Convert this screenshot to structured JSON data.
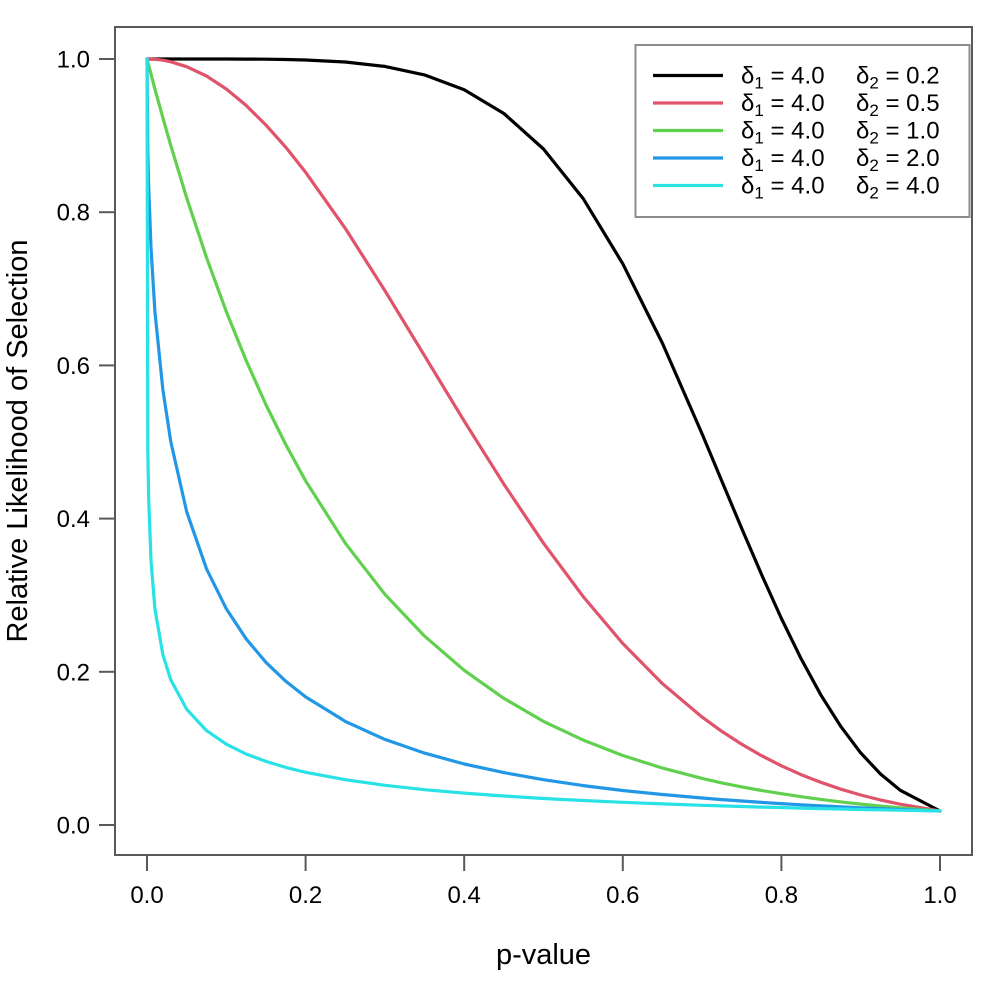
{
  "figure": {
    "background": "#ffffff",
    "axis_color": "#595959",
    "legend_border_color": "#8c8c8c",
    "text_color": "#000000"
  },
  "chart_data": {
    "type": "line",
    "title": "",
    "xlabel": "p-value",
    "ylabel": "Relative Likelihood of Selection",
    "xlim": [
      0,
      1
    ],
    "ylim": [
      0,
      1
    ],
    "grid": false,
    "legend_position": "top-right",
    "xtick_values": [
      0.0,
      0.2,
      0.4,
      0.6,
      0.8,
      1.0
    ],
    "xtick_labels": [
      "0.0",
      "0.2",
      "0.4",
      "0.6",
      "0.8",
      "1.0"
    ],
    "ytick_values": [
      0.0,
      0.2,
      0.4,
      0.6,
      0.8,
      1.0
    ],
    "ytick_labels": [
      "0.0",
      "0.2",
      "0.4",
      "0.6",
      "0.8",
      "1.0"
    ],
    "x": [
      0,
      0.001,
      0.002,
      0.005,
      0.01,
      0.02,
      0.03,
      0.05,
      0.075,
      0.1,
      0.125,
      0.15,
      0.175,
      0.2,
      0.25,
      0.3,
      0.35,
      0.4,
      0.45,
      0.5,
      0.55,
      0.6,
      0.65,
      0.7,
      0.725,
      0.75,
      0.775,
      0.8,
      0.825,
      0.85,
      0.875,
      0.9,
      0.925,
      0.95,
      1.0
    ],
    "series": [
      {
        "name": "δ1 = 4.0  δ2 = 0.2",
        "color": "#000000",
        "legend": {
          "sym1": "δ",
          "sub1": "1",
          "val1": " = 4.0",
          "sym2": "δ",
          "sub2": "2",
          "val2": " = 0.2"
        },
        "values": [
          1.0,
          1.0,
          1.0,
          1.0,
          1.0,
          1.0,
          1.0,
          1.0,
          1.0,
          1.0,
          0.9999,
          0.9997,
          0.9993,
          0.9987,
          0.9961,
          0.9903,
          0.9792,
          0.9599,
          0.9289,
          0.8825,
          0.8177,
          0.7327,
          0.6287,
          0.5106,
          0.4487,
          0.387,
          0.3269,
          0.2696,
          0.2168,
          0.1695,
          0.1285,
          0.0941,
          0.0666,
          0.0453,
          0.0183
        ]
      },
      {
        "name": "δ1 = 4.0  δ2 = 0.5",
        "color": "#DF536B",
        "legend": {
          "sym1": "δ",
          "sub1": "1",
          "val1": " = 4.0",
          "sym2": "δ",
          "sub2": "2",
          "val2": " = 0.5"
        },
        "values": [
          1.0,
          1.0,
          1.0,
          0.9999,
          0.9996,
          0.9984,
          0.9964,
          0.99,
          0.9778,
          0.9608,
          0.9394,
          0.9139,
          0.8847,
          0.8521,
          0.7788,
          0.6977,
          0.6126,
          0.5273,
          0.4449,
          0.3679,
          0.2982,
          0.2369,
          0.1845,
          0.1409,
          0.1222,
          0.1054,
          0.0905,
          0.0773,
          0.0657,
          0.0556,
          0.0468,
          0.0392,
          0.0326,
          0.0271,
          0.0183
        ]
      },
      {
        "name": "δ1 = 4.0  δ2 = 1.0",
        "color": "#61D04F",
        "legend": {
          "sym1": "δ",
          "sub1": "1",
          "val1": " = 4.0",
          "sym2": "δ",
          "sub2": "2",
          "val2": " = 1.0"
        },
        "values": [
          1.0,
          0.996,
          0.992,
          0.9802,
          0.9608,
          0.9231,
          0.8869,
          0.8187,
          0.7408,
          0.6703,
          0.6065,
          0.5488,
          0.4966,
          0.4493,
          0.3679,
          0.3012,
          0.2466,
          0.2019,
          0.1653,
          0.1353,
          0.1108,
          0.0907,
          0.0743,
          0.0608,
          0.055,
          0.0498,
          0.045,
          0.0408,
          0.0369,
          0.0334,
          0.0302,
          0.0273,
          0.0247,
          0.0224,
          0.0183
        ]
      },
      {
        "name": "δ1 = 4.0  δ2 = 2.0",
        "color": "#2297E6",
        "legend": {
          "sym1": "δ",
          "sub1": "1",
          "val1": " = 4.0",
          "sym2": "δ",
          "sub2": "2",
          "val2": " = 2.0"
        },
        "values": [
          1.0,
          0.8812,
          0.8362,
          0.7537,
          0.6703,
          0.568,
          0.5002,
          0.4089,
          0.3344,
          0.2823,
          0.2431,
          0.2124,
          0.1876,
          0.1672,
          0.1353,
          0.1118,
          0.0938,
          0.0796,
          0.0684,
          0.0591,
          0.0515,
          0.0451,
          0.0398,
          0.0352,
          0.0332,
          0.0313,
          0.0295,
          0.0279,
          0.0264,
          0.025,
          0.0237,
          0.0225,
          0.0213,
          0.0203,
          0.0183
        ]
      },
      {
        "name": "δ1 = 4.0  δ2 = 4.0",
        "color": "#28E2E5",
        "legend": {
          "sym1": "δ",
          "sub1": "1",
          "val1": " = 4.0",
          "sym2": "δ",
          "sub2": "2",
          "val2": " = 4.0"
        },
        "values": [
          1.0,
          0.4908,
          0.4291,
          0.3452,
          0.2823,
          0.2222,
          0.1894,
          0.151,
          0.1232,
          0.1055,
          0.0927,
          0.083,
          0.0752,
          0.0688,
          0.0591,
          0.0518,
          0.0461,
          0.0416,
          0.0378,
          0.0346,
          0.032,
          0.0296,
          0.0276,
          0.0257,
          0.0249,
          0.0242,
          0.0234,
          0.0228,
          0.0221,
          0.0214,
          0.0209,
          0.0203,
          0.0198,
          0.0193,
          0.0183
        ]
      }
    ]
  }
}
